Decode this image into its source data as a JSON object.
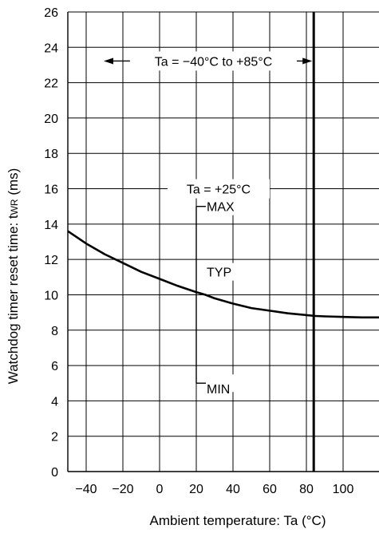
{
  "chart_data": {
    "type": "line",
    "xlabel": "Ambient temperature: Ta (°C)",
    "ylabel_main": "Watchdog timer reset time: t",
    "ylabel_sub": "WR",
    "ylabel_unit": " (ms)",
    "xlim": [
      -50,
      120
    ],
    "ylim": [
      0,
      26
    ],
    "x_ticks": [
      -40,
      -20,
      0,
      20,
      40,
      60,
      80,
      100
    ],
    "y_ticks": [
      0,
      2,
      4,
      6,
      8,
      10,
      12,
      14,
      16,
      18,
      20,
      22,
      24,
      26
    ],
    "x_gridlines": [
      -40,
      -20,
      0,
      20,
      40,
      60,
      80,
      100
    ],
    "grid": true,
    "series": [
      {
        "x": [
          -50,
          -40,
          -30,
          -20,
          -10,
          0,
          10,
          20,
          25,
          30,
          40,
          50,
          60,
          70,
          80,
          85,
          90,
          100,
          110,
          120
        ],
        "y": [
          13.6,
          12.9,
          12.3,
          11.8,
          11.3,
          10.9,
          10.5,
          10.15,
          10.0,
          9.8,
          9.5,
          9.25,
          9.1,
          8.95,
          8.85,
          8.8,
          8.78,
          8.75,
          8.72,
          8.72
        ]
      }
    ],
    "range_line": {
      "x": 84,
      "y_from": 0,
      "y_to": 26
    },
    "range_annotation": {
      "text": "Ta = −40°C to +85°C",
      "x_from": -50,
      "x_to": 84,
      "y": 23
    },
    "spread": {
      "label": "Ta = +25°C",
      "x": 20,
      "max": 15,
      "typ": 10,
      "min": 5
    },
    "spread_labels": {
      "max": "MAX",
      "typ": "TYP",
      "min": "MIN"
    }
  }
}
